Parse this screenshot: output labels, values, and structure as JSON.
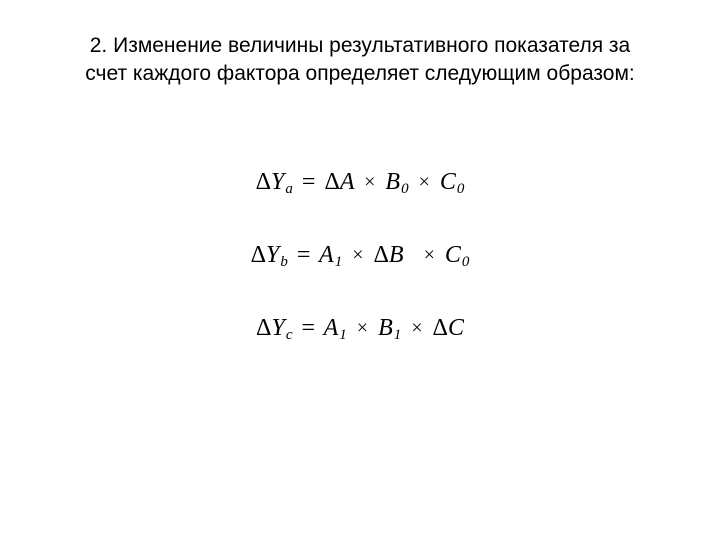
{
  "heading": {
    "line1": "2. Изменение величины результативного показателя за",
    "line2": "счет каждого фактора определяет следующим образом:"
  },
  "formulas": {
    "a": {
      "lhs_base": "Y",
      "lhs_sub": "a",
      "t1_base": "A",
      "t1_delta": true,
      "t2_base": "B",
      "t2_sub": "0",
      "t3_base": "C",
      "t3_sub": "0"
    },
    "b": {
      "lhs_base": "Y",
      "lhs_sub": "b",
      "t1_base": "A",
      "t1_sub": "1",
      "t2_base": "B",
      "t2_delta": true,
      "t3_base": "C",
      "t3_sub": "0"
    },
    "c": {
      "lhs_base": "Y",
      "lhs_sub": "c",
      "t1_base": "A",
      "t1_sub": "1",
      "t2_base": "B",
      "t2_sub": "1",
      "t3_base": "C",
      "t3_delta": true
    }
  },
  "symbols": {
    "delta": "Δ",
    "times": "×",
    "equals": "="
  },
  "style": {
    "heading_fontsize": 21,
    "heading_color": "#000000",
    "formula_fontsize": 24,
    "formula_color": "#000000",
    "background_color": "#ffffff"
  }
}
